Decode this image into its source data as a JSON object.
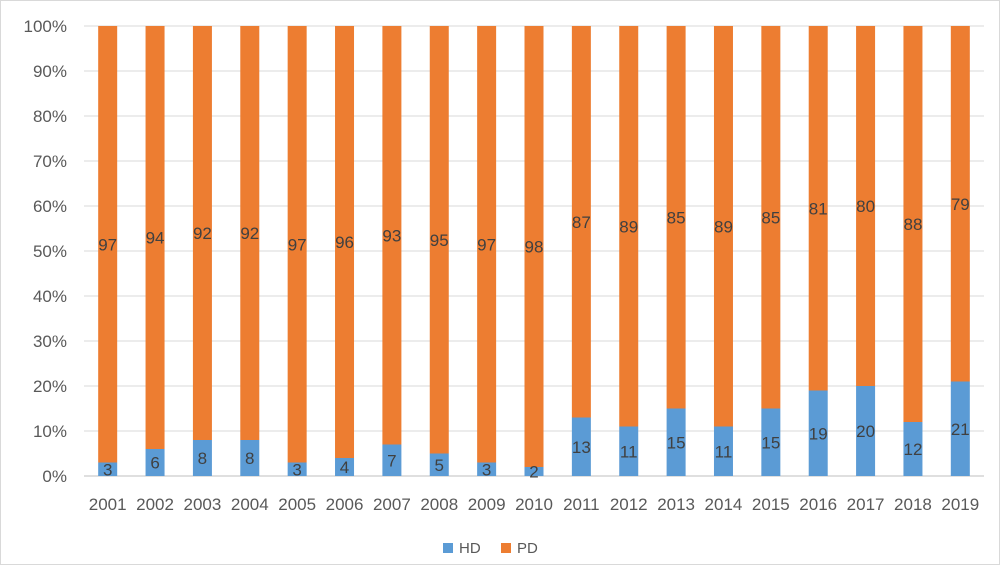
{
  "chart_data": {
    "type": "bar",
    "stacking": "percent",
    "categories": [
      "2001",
      "2002",
      "2003",
      "2004",
      "2005",
      "2006",
      "2007",
      "2008",
      "2009",
      "2010",
      "2011",
      "2012",
      "2013",
      "2014",
      "2015",
      "2016",
      "2017",
      "2018",
      "2019"
    ],
    "series": [
      {
        "name": "HD",
        "color": "#5b9bd5",
        "values": [
          3,
          6,
          8,
          8,
          3,
          4,
          7,
          5,
          3,
          2,
          13,
          11,
          15,
          11,
          15,
          19,
          20,
          12,
          21
        ]
      },
      {
        "name": "PD",
        "color": "#ed7d31",
        "values": [
          97,
          94,
          92,
          92,
          97,
          96,
          93,
          95,
          97,
          98,
          87,
          89,
          85,
          89,
          85,
          81,
          80,
          88,
          79
        ]
      }
    ],
    "yticks": [
      "0%",
      "10%",
      "20%",
      "30%",
      "40%",
      "50%",
      "60%",
      "70%",
      "80%",
      "90%",
      "100%"
    ],
    "ylim": [
      0,
      100
    ],
    "grid": true,
    "legend_position": "bottom",
    "title": "",
    "xlabel": "",
    "ylabel": ""
  }
}
